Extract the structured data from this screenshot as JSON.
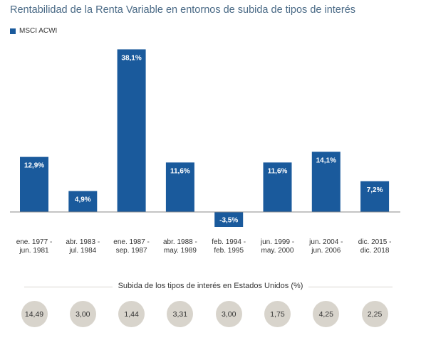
{
  "title": "Rentabilidad de la Renta Variable en entornos de subida de tipos de interés",
  "legend": {
    "label": "MSCI ACWI",
    "color": "#1a5a9c"
  },
  "chart_data": {
    "type": "bar",
    "categories": [
      [
        "ene. 1977 -",
        "jun. 1981"
      ],
      [
        "abr. 1983 -",
        "jul. 1984"
      ],
      [
        "ene. 1987 -",
        "sep. 1987"
      ],
      [
        "abr. 1988 -",
        "may. 1989"
      ],
      [
        "feb. 1994 -",
        "feb. 1995"
      ],
      [
        "jun. 1999 -",
        "may. 2000"
      ],
      [
        "jun. 2004 -",
        "jun. 2006"
      ],
      [
        "dic. 2015 -",
        "dic. 2018"
      ]
    ],
    "series": [
      {
        "name": "MSCI ACWI",
        "values": [
          12.9,
          4.9,
          38.1,
          11.6,
          -3.5,
          11.6,
          14.1,
          7.2
        ],
        "labels": [
          "12,9%",
          "4,9%",
          "38,1%",
          "11,6%",
          "-3,5%",
          "11,6%",
          "14,1%",
          "7,2%"
        ]
      }
    ],
    "ylim": [
      -3.5,
      38.1
    ],
    "grid": false,
    "legend_position": "top-left"
  },
  "rates": {
    "title": "Subida de los tipos de interés en Estados Unidos (%)",
    "values": [
      "14,49",
      "3,00",
      "1,44",
      "3,31",
      "3,00",
      "1,75",
      "4,25",
      "2,25"
    ]
  }
}
